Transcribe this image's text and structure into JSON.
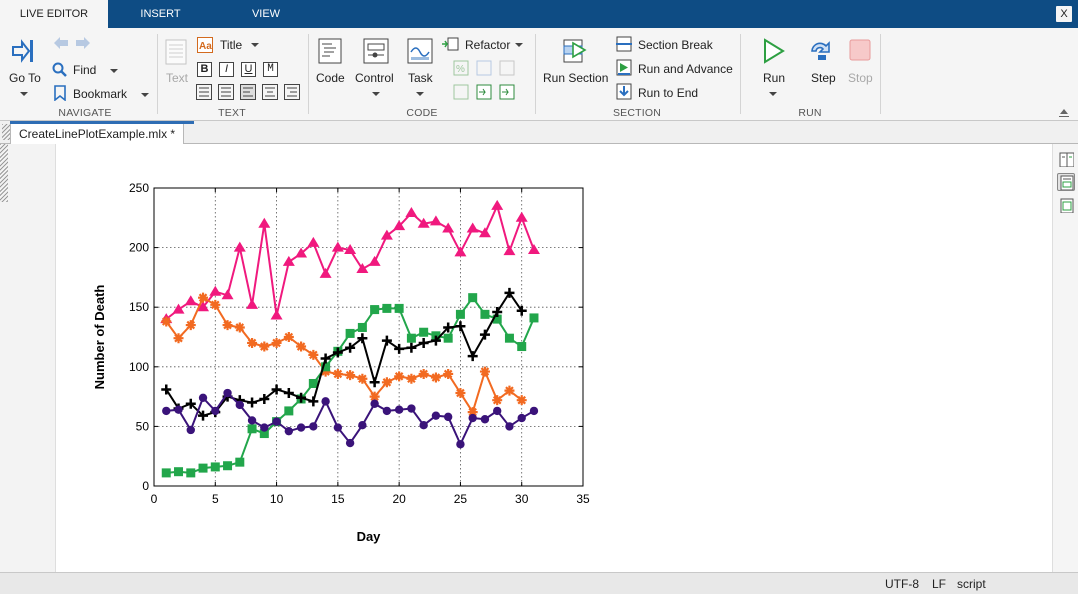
{
  "tabs": [
    {
      "label": "LIVE EDITOR",
      "active": true
    },
    {
      "label": "INSERT",
      "active": false
    },
    {
      "label": "VIEW",
      "active": false
    }
  ],
  "close_label": "X",
  "ribbon": {
    "navigate": {
      "section": "NAVIGATE",
      "goto": "Go To",
      "find": "Find",
      "bookmark": "Bookmark"
    },
    "text": {
      "section": "TEXT",
      "text": "Text",
      "title": "Title",
      "bold": "B",
      "italic": "I",
      "underline": "U",
      "mono": "M"
    },
    "code": {
      "section": "CODE",
      "code": "Code",
      "control": "Control",
      "task": "Task",
      "refactor": "Refactor"
    },
    "section": {
      "section": "SECTION",
      "run_section": "Run Section",
      "section_break": "Section Break",
      "run_and_advance": "Run and Advance",
      "run_to_end": "Run to End"
    },
    "run": {
      "section": "RUN",
      "run": "Run",
      "step": "Step",
      "stop": "Stop"
    }
  },
  "document": {
    "tab_title": "CreateLinePlotExample.mlx *"
  },
  "status": {
    "encoding": "UTF-8",
    "line_ending": "LF",
    "mode": "script"
  },
  "colors": {
    "accent": "#0e4c84",
    "run_green": "#2ea043",
    "step_blue": "#2a6fbf",
    "stop_red": "#f0a0a0"
  },
  "chart_data": {
    "type": "line",
    "xlabel": "Day",
    "ylabel": "Number of Death",
    "xlim": [
      0,
      35
    ],
    "ylim": [
      0,
      250
    ],
    "xticks": [
      0,
      5,
      10,
      15,
      20,
      25,
      30,
      35
    ],
    "yticks": [
      0,
      50,
      100,
      150,
      200,
      250
    ],
    "grid": true,
    "x": [
      1,
      2,
      3,
      4,
      5,
      6,
      7,
      8,
      9,
      10,
      11,
      12,
      13,
      14,
      15,
      16,
      17,
      18,
      19,
      20,
      21,
      22,
      23,
      24,
      25,
      26,
      27,
      28,
      29,
      30,
      31
    ],
    "series": [
      {
        "color": "#f0197e",
        "marker": "triangle",
        "values": [
          140,
          148,
          155,
          150,
          163,
          160,
          200,
          152,
          220,
          143,
          188,
          195,
          204,
          178,
          200,
          198,
          182,
          188,
          210,
          218,
          229,
          220,
          222,
          216,
          196,
          216,
          212,
          235,
          197,
          225,
          198
        ]
      },
      {
        "color": "#f26a21",
        "marker": "star",
        "values": [
          138,
          124,
          135,
          158,
          152,
          135,
          133,
          120,
          117,
          120,
          125,
          117,
          110,
          96,
          94,
          93,
          90,
          75,
          87,
          92,
          90,
          94,
          91,
          94,
          78,
          62,
          96,
          72,
          80,
          72,
          null
        ]
      },
      {
        "color": "#22a64b",
        "marker": "square",
        "values": [
          11,
          12,
          11,
          15,
          16,
          17,
          20,
          48,
          44,
          54,
          63,
          73,
          86,
          100,
          113,
          128,
          133,
          148,
          149,
          149,
          124,
          129,
          126,
          124,
          144,
          158,
          144,
          140,
          124,
          117,
          141
        ]
      },
      {
        "color": "#000000",
        "marker": "plus",
        "values": [
          81,
          65,
          69,
          59,
          62,
          75,
          72,
          70,
          73,
          81,
          78,
          74,
          71,
          107,
          112,
          116,
          124,
          87,
          122,
          115,
          116,
          120,
          122,
          133,
          134,
          109,
          127,
          146,
          162,
          147,
          null
        ]
      },
      {
        "color": "#3a137a",
        "marker": "circle",
        "values": [
          63,
          64,
          47,
          74,
          63,
          78,
          68,
          55,
          49,
          54,
          46,
          49,
          50,
          71,
          49,
          36,
          51,
          69,
          63,
          64,
          65,
          51,
          59,
          58,
          35,
          57,
          56,
          63,
          50,
          57,
          63
        ]
      }
    ]
  }
}
